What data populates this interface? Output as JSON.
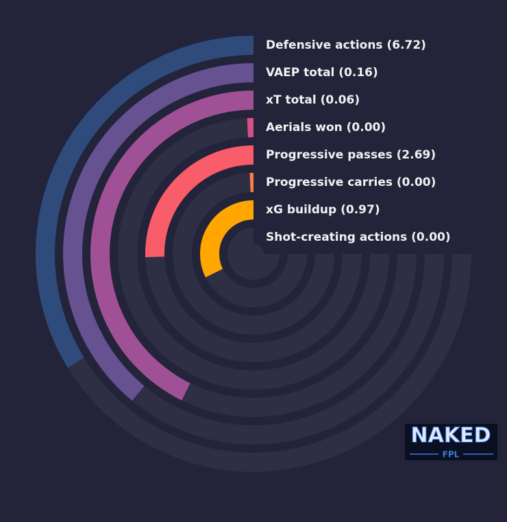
{
  "chart_data": {
    "type": "radial_bar",
    "categories": [
      "Defensive actions (6.72)",
      "VAEP total (0.16)",
      "xT total (0.06)",
      "Aerials won (0.00)",
      "Progressive passes (2.69)",
      "Progressive carries (0.00)",
      "xG buildup (0.97)",
      "Shot-creating actions (0.00)"
    ],
    "values": [
      45,
      52,
      57,
      1,
      34,
      1,
      43,
      0
    ],
    "colors": [
      "#2f4b7c",
      "#665191",
      "#a05195",
      "#d45087",
      "#f95d6a",
      "#ff7c43",
      "#ffa600",
      "#003f5c"
    ],
    "xlim": [
      0,
      100
    ]
  },
  "logo": {
    "text": "NAKED",
    "sub": "FPL"
  }
}
